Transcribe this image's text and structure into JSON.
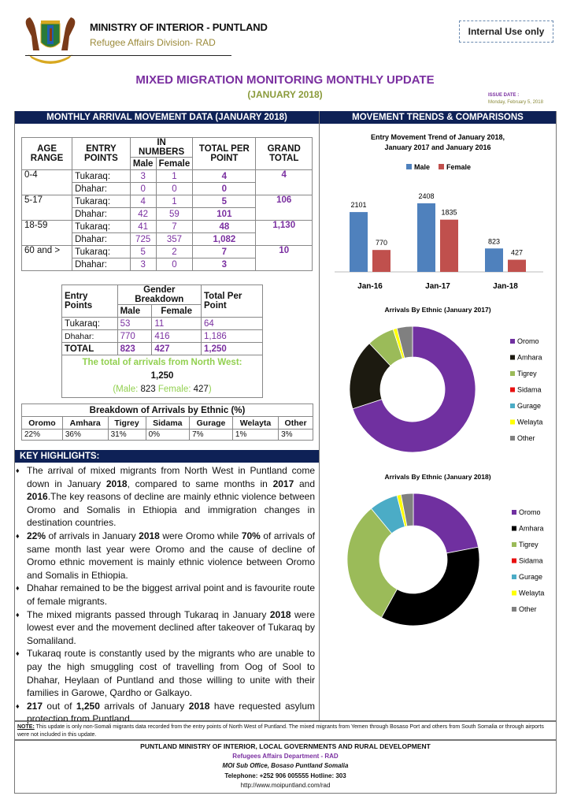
{
  "header": {
    "ministry": "MINISTRY OF INTERIOR - PUNTLAND",
    "division": "Refugee Affairs Division- RAD",
    "internal": "Internal Use only",
    "title": "MIXED MIGRATION MONITORING MONTHLY UPDATE",
    "subtitle": "(JANUARY 2018)",
    "issue_label": "ISSUE DATE :",
    "issue_date": "Monday, February 5, 2018"
  },
  "left_title": "MONTHLY ARRIVAL MOVEMENT DATA (JANUARY 2018)",
  "right_title": "MOVEMENT TRENDS & COMPARISONS",
  "age_table": {
    "h": [
      "AGE RANGE",
      "ENTRY POINTS",
      "IN NUMBERS",
      "TOTAL PER POINT",
      "GRAND TOTAL",
      "Male",
      "Female"
    ],
    "rows": [
      {
        "age": "0-4",
        "grand": "4",
        "pts": [
          [
            "Tukaraq:",
            "3",
            "1",
            "4"
          ],
          [
            "Dhahar:",
            "0",
            "0",
            "0"
          ]
        ]
      },
      {
        "age": "5-17",
        "grand": "106",
        "pts": [
          [
            "Tukaraq:",
            "4",
            "1",
            "5"
          ],
          [
            "Dhahar:",
            "42",
            "59",
            "101"
          ]
        ]
      },
      {
        "age": "18-59",
        "grand": "1,130",
        "pts": [
          [
            "Tukaraq:",
            "41",
            "7",
            "48"
          ],
          [
            "Dhahar:",
            "725",
            "357",
            "1,082"
          ]
        ]
      },
      {
        "age": "60 and >",
        "grand": "10",
        "pts": [
          [
            "Tukaraq:",
            "5",
            "2",
            "7"
          ],
          [
            "Dhahar:",
            "3",
            "0",
            "3"
          ]
        ]
      }
    ]
  },
  "gender_table": {
    "h": [
      "Entry Points",
      "Gender Breakdown",
      "Total Per Point",
      "Male",
      "Female"
    ],
    "rows": [
      [
        "Tukaraq:",
        "53",
        "11",
        "64"
      ],
      [
        "Dhahar:",
        "770",
        "416",
        "1,186"
      ],
      [
        "TOTAL",
        "823",
        "427",
        "1,250"
      ]
    ],
    "summary_label": "The total of arrivals from North West:",
    "summary_total": "1,250",
    "male_label": "(Male:",
    "male": "823",
    "female_label": "Female:",
    "female": "427",
    "close": ")"
  },
  "ethnic_table": {
    "title": "Breakdown of Arrivals by Ethnic (%)",
    "names": [
      "Oromo",
      "Amhara",
      "Tigrey",
      "Sidama",
      "Gurage",
      "Welayta",
      "Other"
    ],
    "values": [
      "22%",
      "36%",
      "31%",
      "0%",
      "7%",
      "1%",
      "3%"
    ]
  },
  "highlights": {
    "title": "KEY HIGHLIGHTS:",
    "items": [
      [
        {
          "t": "The arrival of mixed migrants from North West in Puntland come down in January "
        },
        {
          "t": "2018",
          "b": true
        },
        {
          "t": ", compared to same months in "
        },
        {
          "t": "2017",
          "b": true
        },
        {
          "t": " and "
        },
        {
          "t": "2016",
          "b": true
        },
        {
          "t": ".The key reasons of decline are mainly ethnic violence between Oromo and Somalis in Ethiopia and immigration changes in destination countries."
        }
      ],
      [
        {
          "t": "22%",
          "b": true
        },
        {
          "t": " of arrivals in January "
        },
        {
          "t": "2018",
          "b": true
        },
        {
          "t": " were Oromo while "
        },
        {
          "t": "70%",
          "b": true
        },
        {
          "t": " of arrivals of same month last year were Oromo and the cause of decline of Oromo ethnic movement is mainly ethnic violence between Oromo and Somalis in Ethiopia."
        }
      ],
      [
        {
          "t": "Dhahar remained to be the biggest arrival point and is favourite route of female migrants."
        }
      ],
      [
        {
          "t": "The mixed migrants passed through Tukaraq in January "
        },
        {
          "t": "2018",
          "b": true
        },
        {
          "t": " were lowest ever and the movement declined after takeover of Tukaraq by Somaliland."
        }
      ],
      [
        {
          "t": "Tukaraq route is  constantly used by the migrants who are unable to pay the high smuggling cost of travelling from Oog of Sool to Dhahar, Heylaan of Puntland and those willing to unite with their families in Garowe, Qardho or Galkayo."
        }
      ],
      [
        {
          "t": "217",
          "b": true
        },
        {
          "t": " out of "
        },
        {
          "t": "1,250",
          "b": true
        },
        {
          "t": " arrivals of January "
        },
        {
          "t": "2018",
          "b": true
        },
        {
          "t": " have requested asylum protection from Puntland."
        }
      ]
    ]
  },
  "note": {
    "label": "NOTE:",
    "text": " This update is only non-Somali migrants data recorded from the entry points of North West of Puntland. The mixed migrants from Yemen through Bosaso Port and others from South Somalia or through airports were not included in this update."
  },
  "footer": {
    "l1": "PUNTLAND MINISTRY OF INTERIOR, LOCAL GOVERNMENTS AND RURAL DEVELOPMENT",
    "l2": "Refugees Affairs Department - RAD",
    "l3": "MOI Sub Office, Bosaso Puntland Somalia",
    "l4": "Telephone: +252 906 005555 Hotline: 303",
    "l5": "http://www.moipuntland.com/rad"
  },
  "chart_data": [
    {
      "type": "bar",
      "title": "Entry Movement Trend of January 2018, January 2017 and  January 2016",
      "categories": [
        "Jan-16",
        "Jan-17",
        "Jan-18"
      ],
      "series": [
        {
          "name": "Male",
          "values": [
            2101,
            2408,
            823
          ],
          "color": "#4f81bd"
        },
        {
          "name": "Female",
          "values": [
            770,
            1835,
            427
          ],
          "color": "#c0504d"
        }
      ],
      "legend": "top"
    },
    {
      "type": "pie",
      "title": "Arrivals By Ethnic (January 2017)",
      "categories": [
        "Oromo",
        "Amhara",
        "Tigrey",
        "Sidama",
        "Gurage",
        "Welayta",
        "Other"
      ],
      "values": [
        70,
        18,
        7,
        0,
        0,
        1,
        4
      ],
      "colors": [
        "#7030a0",
        "#1c1a10",
        "#9bbb59",
        "#e81010",
        "#4bacc6",
        "#ffff00",
        "#808080"
      ],
      "legend": "right"
    },
    {
      "type": "pie",
      "title": "Arrivals By Ethnic (January 2018)",
      "categories": [
        "Oromo",
        "Amhara",
        "Tigrey",
        "Sidama",
        "Gurage",
        "Welayta",
        "Other"
      ],
      "values": [
        22,
        36,
        31,
        0,
        7,
        1,
        3
      ],
      "colors": [
        "#7030a0",
        "#000000",
        "#9bbb59",
        "#e81010",
        "#4bacc6",
        "#ffff00",
        "#808080"
      ],
      "legend": "right"
    }
  ]
}
